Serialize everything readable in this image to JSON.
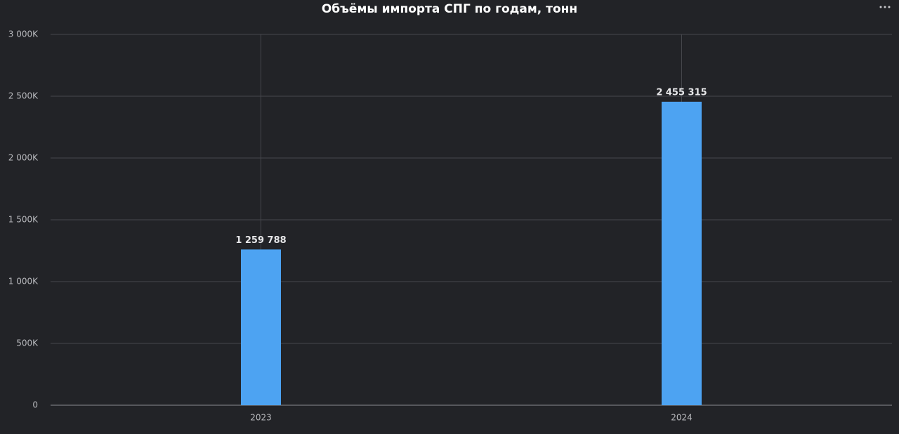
{
  "chart_data": {
    "type": "bar",
    "title": "Объёмы импорта СПГ по годам, тонн",
    "categories": [
      "2023",
      "2024"
    ],
    "values": [
      1259788,
      2455315
    ],
    "value_labels": [
      "1 259 788",
      "2 455 315"
    ],
    "color": "#4da3f2",
    "ylim": [
      0,
      3000000
    ],
    "yticks": [
      0,
      {
        "value": 500000,
        "label": "500K"
      },
      {
        "value": 1000000,
        "label": "1 000K"
      },
      {
        "value": 1500000,
        "label": "1 500K"
      },
      {
        "value": 2000000,
        "label": "2 000K"
      },
      {
        "value": 2500000,
        "label": "2 500K"
      },
      {
        "value": 3000000,
        "label": "3 000K"
      }
    ],
    "grid": true
  }
}
